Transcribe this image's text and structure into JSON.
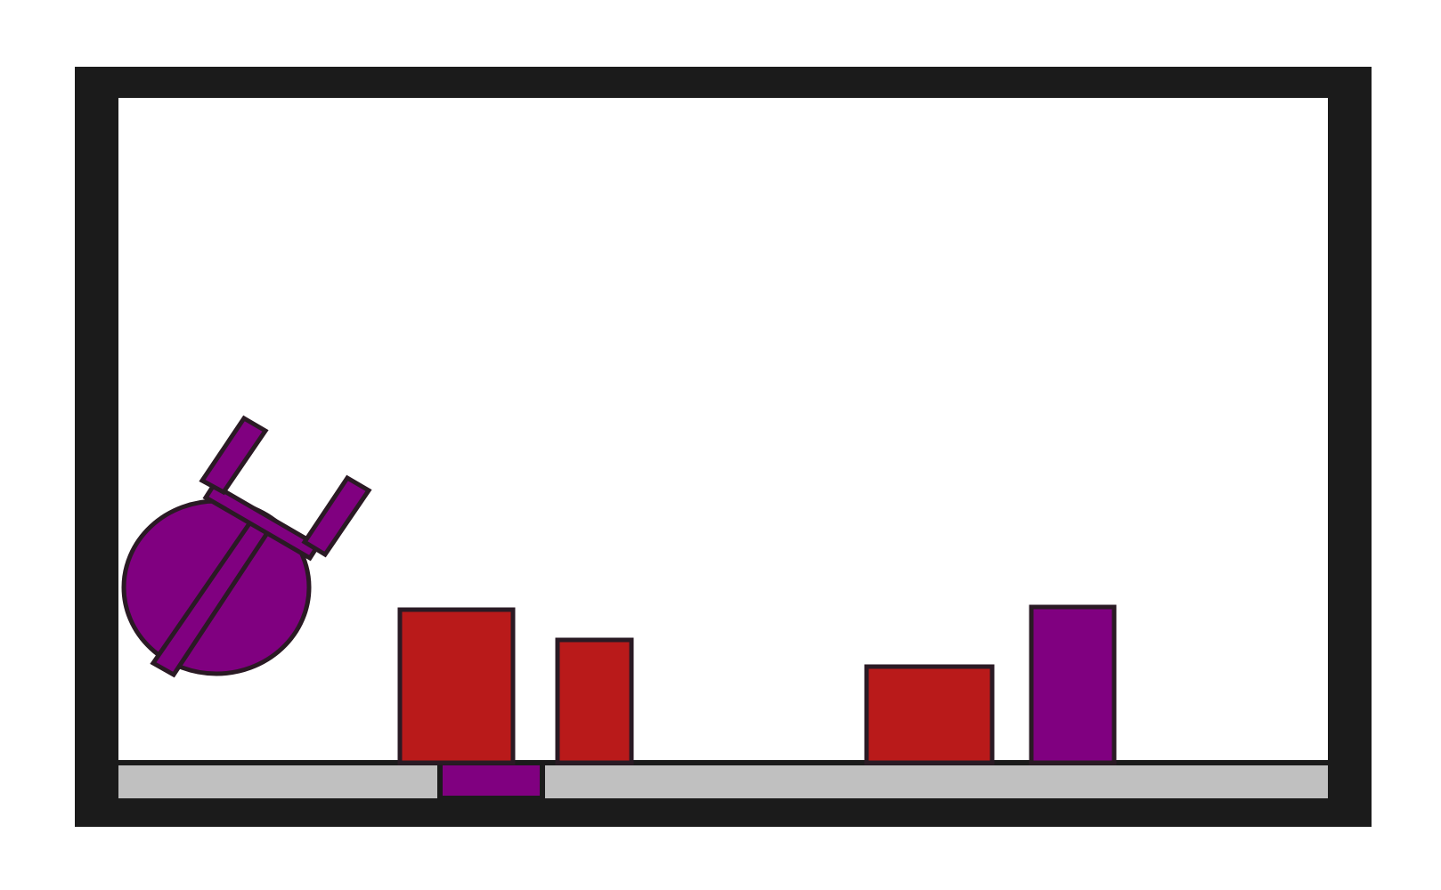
{
  "scene": {
    "type": "physics-puzzle",
    "colors": {
      "background": "#ffffff",
      "frame": "#1b1b1b",
      "floor": "#c0c0c0",
      "outline": "#2a1a24",
      "goal_purple": "#800080",
      "obstacle_red": "#b91a1a"
    },
    "objects": [
      {
        "id": "player-ball",
        "kind": "ball",
        "color": "purple",
        "dynamic": true
      },
      {
        "id": "player-jar",
        "kind": "jar",
        "color": "purple",
        "dynamic": true
      },
      {
        "id": "red-block-1",
        "kind": "block",
        "color": "red",
        "dynamic": true
      },
      {
        "id": "red-block-2",
        "kind": "block",
        "color": "red",
        "dynamic": true
      },
      {
        "id": "red-block-3",
        "kind": "block",
        "color": "red",
        "dynamic": true
      },
      {
        "id": "purple-block",
        "kind": "block",
        "color": "purple",
        "dynamic": true
      },
      {
        "id": "goal-floor-segment",
        "kind": "floor-target",
        "color": "purple",
        "dynamic": false
      }
    ]
  }
}
